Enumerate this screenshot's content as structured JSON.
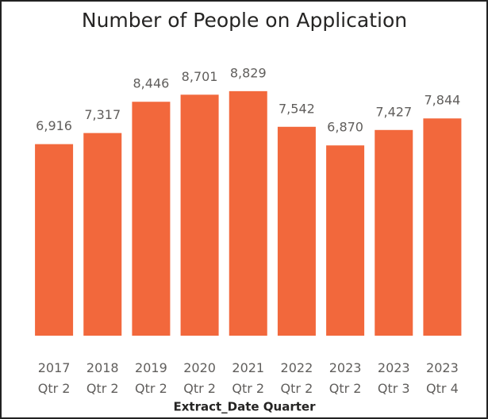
{
  "chart_data": {
    "type": "bar",
    "title": "Number of People on Application",
    "categories": [
      "2017 Qtr 2",
      "2018 Qtr 2",
      "2019 Qtr 2",
      "2020 Qtr 2",
      "2021 Qtr 2",
      "2022 Qtr 2",
      "2023 Qtr 2",
      "2023 Qtr 3",
      "2023 Qtr 4"
    ],
    "values": [
      6916,
      7317,
      8446,
      8701,
      8829,
      7542,
      6870,
      7427,
      7844
    ],
    "value_labels": [
      "6,916",
      "7,317",
      "8,446",
      "8,701",
      "8,829",
      "7,542",
      "6,870",
      "7,427",
      "7,844"
    ],
    "color": "#f2683c",
    "ylim": [
      0,
      10000
    ],
    "x_label": "Extract_Date Quarter"
  }
}
